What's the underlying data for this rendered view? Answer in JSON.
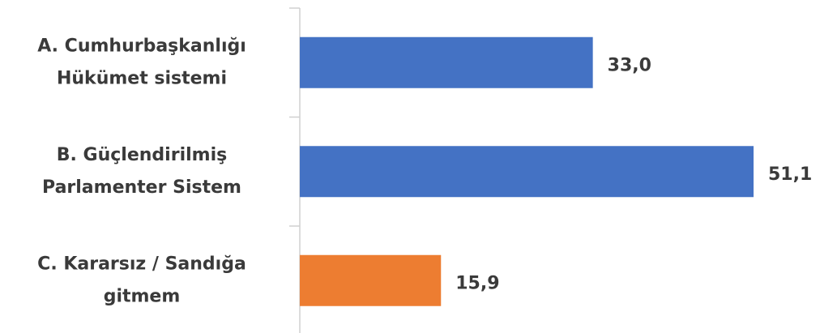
{
  "chart_data": {
    "type": "bar",
    "orientation": "horizontal",
    "categories": [
      [
        "A. Cumhurbaşkanlığı",
        "Hükümet sistemi"
      ],
      [
        "B. Güçlendirilmiş",
        "Parlamenter Sistem"
      ],
      [
        "C. Kararsız / Sandığa",
        "gitmem"
      ]
    ],
    "values": [
      33.0,
      51.1,
      15.9
    ],
    "value_labels": [
      "33,0",
      "51,1",
      "15,9"
    ],
    "colors": [
      "#4472c4",
      "#4472c4",
      "#ed7d31"
    ]
  }
}
